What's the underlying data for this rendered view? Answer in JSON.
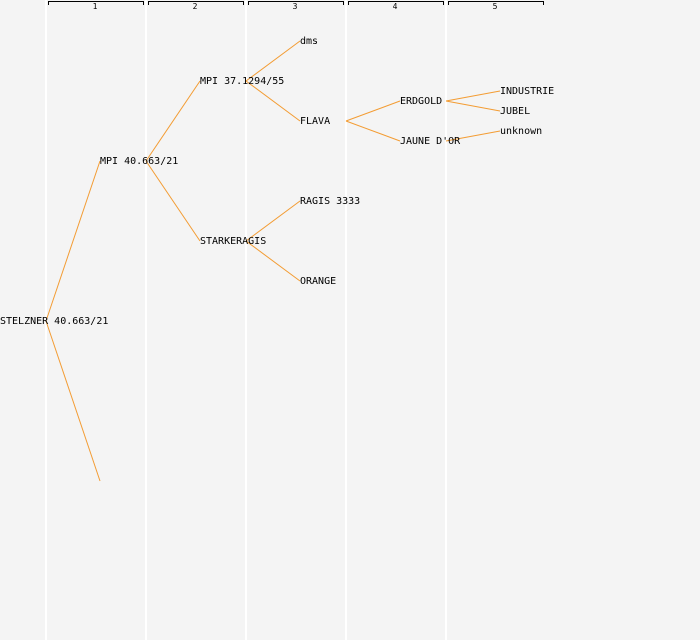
{
  "colors": {
    "link": "#f39c33",
    "background": "#f4f4f4",
    "text": "#000000"
  },
  "generations": [
    "1",
    "2",
    "3",
    "4",
    "5"
  ],
  "nodes": {
    "root": "STELZNER 40.663/21",
    "g1_father": "MPI 40.663/21",
    "g2_ff": "MPI 37.1294/55",
    "g2_fm": "STARKERAGIS",
    "g3_fff": "dms",
    "g3_ffm": "FLAVA",
    "g3_fmf": "RAGIS 3333",
    "g3_fmm": "ORANGE",
    "g4_ffmf": "ERDGOLD",
    "g4_ffmm": "JAUNE D'OR",
    "g5_ffmff": "INDUSTRIE",
    "g5_ffmfm": "JUBEL",
    "g5_ffmmf": "unknown"
  }
}
